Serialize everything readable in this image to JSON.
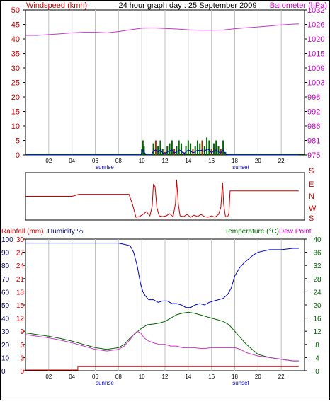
{
  "header": {
    "windspeed_label": "Windspeed (kmh)",
    "title": "24 hour graph day : 25 September 2009",
    "barometer_label": "Barometer (hPa)"
  },
  "labels": {
    "rainfall": "Rainfall (mm)",
    "humidity": "Humidity %",
    "temperature": "Temperature (°C)",
    "dewpoint": "Dew Point",
    "sunrise": "sunrise",
    "sunset": "sunset"
  },
  "colors": {
    "wind_axis": "#cc0000",
    "baro_axis": "#cc00cc",
    "baro_line": "#cc33cc",
    "wind_avg": "#006600",
    "wind_gust": "#993300",
    "wind_blue": "#0000cc",
    "direction_line": "#cc0000",
    "humidity_line": "#0000cc",
    "temperature_line": "#006600",
    "dewpoint_line": "#cc33cc",
    "rain_line": "#cc0000",
    "temp_axis": "#006600",
    "rain_axis": "#cc0000",
    "humidity_axis": "#000066",
    "grid": "#c0c0c0"
  },
  "chart_data": [
    {
      "type": "line",
      "name": "wind-and-barometer",
      "x_ticks": [
        "02",
        "04",
        "06",
        "08",
        "10",
        "12",
        "14",
        "16",
        "18",
        "20",
        "22"
      ],
      "xlim": [
        0,
        24
      ],
      "y_left_ticks": [
        "0",
        "5",
        "10",
        "15",
        "20",
        "25",
        "30",
        "35",
        "40",
        "45",
        "50"
      ],
      "y_left_lim": [
        0,
        50
      ],
      "y_right_ticks": [
        "975",
        "981",
        "986",
        "992",
        "998",
        "1003",
        "1009",
        "1015",
        "1020",
        "1026",
        "1032"
      ],
      "y_right_lim": [
        975,
        1032
      ],
      "series": [
        {
          "name": "Barometer (hPa)",
          "axis": "right",
          "x": [
            0,
            1,
            2,
            3,
            4,
            5,
            6,
            7,
            8,
            9,
            10,
            11,
            12,
            13,
            14,
            15,
            16,
            17,
            18,
            19,
            20,
            21,
            22,
            23,
            23.5
          ],
          "y": [
            1022,
            1022,
            1022.3,
            1022.6,
            1023,
            1023.2,
            1023.2,
            1023,
            1023.5,
            1024.2,
            1024.8,
            1024.9,
            1024.7,
            1024.5,
            1024.2,
            1024,
            1024,
            1024.1,
            1024.6,
            1025,
            1025.3,
            1025.7,
            1026.1,
            1026.4,
            1026.5
          ]
        },
        {
          "name": "Windspeed (kmh)",
          "axis": "left",
          "x": [
            0,
            9.9,
            10.0,
            10.1,
            10.2,
            10.4,
            10.6,
            10.8,
            11.0,
            11.2,
            11.4,
            11.6,
            11.8,
            12.0,
            12.2,
            12.4,
            12.6,
            12.8,
            13.0,
            13.2,
            13.4,
            13.6,
            13.8,
            14.0,
            14.2,
            14.4,
            14.6,
            14.8,
            15.0,
            15.2,
            15.4,
            15.6,
            15.8,
            16.0,
            16.2,
            16.4,
            16.6,
            16.8,
            17.0,
            17.2,
            17.4,
            23.5
          ],
          "y": [
            0,
            0,
            2,
            5,
            3,
            0,
            0,
            0,
            4,
            5,
            3,
            5,
            2,
            1,
            3,
            4,
            5,
            2,
            3,
            5,
            4,
            1,
            3,
            5,
            4,
            2,
            3,
            5,
            4,
            5,
            3,
            6,
            5,
            2,
            4,
            5,
            3,
            2,
            5,
            1,
            0,
            0
          ]
        }
      ]
    },
    {
      "type": "line",
      "name": "wind-direction",
      "y_ticks": [
        "S",
        "E",
        "N",
        "W",
        "S"
      ],
      "xlim": [
        0,
        24
      ],
      "series": [
        {
          "name": "Direction",
          "x": [
            0,
            2,
            4,
            4.6,
            6,
            8,
            8.9,
            9.2,
            9.5,
            9.8,
            10.1,
            10.4,
            10.7,
            10.9,
            11.0,
            11.15,
            11.3,
            11.5,
            11.8,
            12.1,
            12.4,
            12.7,
            12.9,
            13.0,
            13.15,
            13.3,
            13.6,
            13.9,
            14.2,
            14.5,
            14.8,
            15.1,
            15.4,
            15.7,
            16.0,
            16.3,
            16.6,
            16.8,
            16.95,
            17.05,
            17.2,
            17.4,
            17.5,
            17.6,
            17.8,
            18.1,
            20,
            22,
            23.5
          ],
          "y": [
            200,
            200,
            200,
            185,
            185,
            185,
            185,
            255,
            350,
            345,
            330,
            310,
            340,
            270,
            115,
            130,
            280,
            340,
            345,
            340,
            325,
            345,
            250,
            80,
            260,
            340,
            345,
            330,
            350,
            335,
            345,
            330,
            345,
            350,
            340,
            350,
            330,
            280,
            100,
            260,
            345,
            345,
            320,
            160,
            160,
            160,
            160,
            160,
            160
          ]
        }
      ]
    },
    {
      "type": "line",
      "name": "temperature-humidity-rain",
      "x_ticks": [
        "02",
        "04",
        "06",
        "08",
        "10",
        "12",
        "14",
        "16",
        "18",
        "20",
        "22"
      ],
      "xlim": [
        0,
        24
      ],
      "y_left_ticks": [
        "0",
        "10",
        "20",
        "30",
        "40",
        "50",
        "60",
        "70",
        "80",
        "90",
        "100"
      ],
      "y_left_lim": [
        0,
        100
      ],
      "y_rain_ticks": [
        "0",
        "3",
        "6",
        "9",
        "12",
        "15",
        "18",
        "21",
        "24",
        "27",
        "30"
      ],
      "y_rain_lim": [
        0,
        30
      ],
      "y_right_ticks": [
        "0",
        "4",
        "8",
        "12",
        "16",
        "20",
        "24",
        "28",
        "32",
        "36",
        "40"
      ],
      "y_right_lim": [
        0,
        40
      ],
      "series": [
        {
          "name": "Humidity %",
          "axis": "left",
          "x": [
            0,
            1,
            2,
            3,
            4,
            5,
            6,
            7,
            8,
            8.5,
            9,
            9.3,
            9.6,
            9.9,
            10.1,
            10.3,
            10.6,
            11,
            11.4,
            11.8,
            12.2,
            12.6,
            13,
            13.4,
            13.8,
            14.2,
            14.6,
            15,
            15.4,
            15.8,
            16.2,
            16.6,
            17,
            17.4,
            17.7,
            18,
            18.4,
            18.8,
            19.2,
            19.6,
            20,
            20.5,
            21,
            22,
            23,
            23.5
          ],
          "y": [
            97,
            97,
            97,
            97,
            97,
            97,
            97,
            97,
            97,
            96,
            95,
            90,
            80,
            66,
            60,
            57,
            54,
            54,
            52,
            53,
            53,
            51,
            51,
            50,
            48,
            48,
            50,
            51,
            50,
            52,
            53,
            54,
            55,
            58,
            63,
            72,
            78,
            82,
            85,
            88,
            90,
            91,
            92,
            92,
            93,
            93
          ]
        },
        {
          "name": "Temperature (°C)",
          "axis": "right",
          "x": [
            0,
            1,
            2,
            3,
            4,
            5,
            6,
            7,
            8,
            8.5,
            9,
            9.5,
            10,
            10.5,
            11,
            11.5,
            12,
            12.5,
            13,
            13.5,
            14,
            14.5,
            15,
            15.5,
            16,
            16.5,
            17,
            17.5,
            18,
            18.5,
            19,
            19.5,
            20,
            21,
            22,
            23,
            23.5
          ],
          "y": [
            11.5,
            11,
            10.5,
            9.8,
            9,
            8,
            7,
            6.5,
            7,
            8,
            10,
            11.5,
            13,
            14,
            14.2,
            14.5,
            15,
            16,
            17,
            17.5,
            17.8,
            17.5,
            17,
            16.5,
            16,
            15.5,
            15,
            14,
            12,
            10,
            8,
            6.5,
            5,
            4,
            3.5,
            3,
            3
          ]
        },
        {
          "name": "Dew Point",
          "axis": "right",
          "x": [
            0,
            1,
            2,
            3,
            4,
            5,
            6,
            7,
            8,
            8.5,
            9,
            9.3,
            9.6,
            9.9,
            10.2,
            10.6,
            11,
            11.5,
            12,
            12.5,
            13,
            13.5,
            14,
            14.5,
            15,
            15.5,
            16,
            16.5,
            17,
            17.5,
            18,
            18.5,
            19,
            19.5,
            20,
            21,
            22,
            23,
            23.5
          ],
          "y": [
            11,
            10.5,
            10,
            9.3,
            8.5,
            7.5,
            6.5,
            6,
            6.5,
            7.5,
            9.5,
            11,
            12,
            11.5,
            10,
            9,
            8.5,
            8,
            8,
            7.5,
            7.5,
            7,
            7,
            7,
            6.8,
            6.8,
            7,
            7,
            7,
            7,
            7,
            6.5,
            5.5,
            5,
            4.5,
            4,
            3.5,
            3,
            3
          ]
        },
        {
          "name": "Rainfall (mm)",
          "axis": "rain",
          "x": [
            0,
            4.5,
            4.5,
            23.5
          ],
          "y": [
            0,
            0,
            1,
            1
          ]
        }
      ]
    }
  ]
}
